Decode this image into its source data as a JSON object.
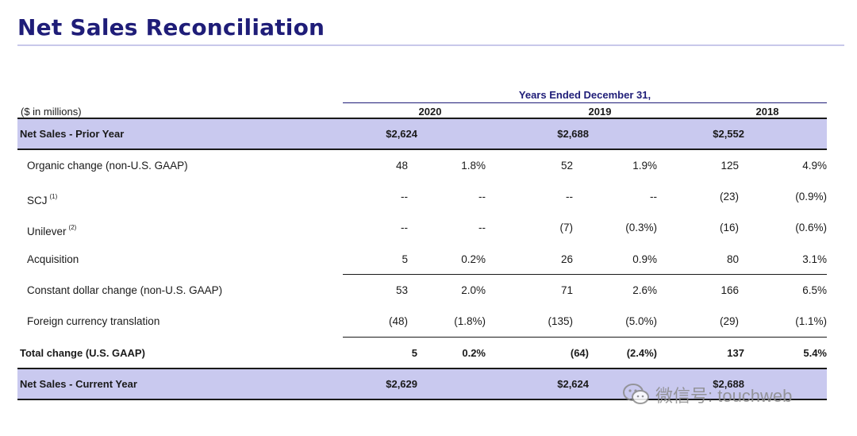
{
  "title": "Net Sales Reconciliation",
  "header": {
    "years_caption": "Years Ended December 31,",
    "units": "($ in millions)",
    "years": [
      "2020",
      "2019",
      "2018"
    ]
  },
  "rows": [
    {
      "label": "Net Sales - Prior Year",
      "values": [
        "$2,624",
        "",
        "$2,688",
        "",
        "$2,552",
        ""
      ]
    },
    {
      "label": "Organic change (non-U.S. GAAP)",
      "values": [
        "48",
        "1.8%",
        "52",
        "1.9%",
        "125",
        "4.9%"
      ]
    },
    {
      "label": "SCJ",
      "note": "(1)",
      "values": [
        "--",
        "--",
        "--",
        "--",
        "(23)",
        "(0.9%)"
      ]
    },
    {
      "label": "Unilever",
      "note": "(2)",
      "values": [
        "--",
        "--",
        "(7)",
        "(0.3%)",
        "(16)",
        "(0.6%)"
      ]
    },
    {
      "label": "Acquisition",
      "values": [
        "5",
        "0.2%",
        "26",
        "0.9%",
        "80",
        "3.1%"
      ]
    },
    {
      "label": "Constant dollar change (non-U.S. GAAP)",
      "values": [
        "53",
        "2.0%",
        "71",
        "2.6%",
        "166",
        "6.5%"
      ]
    },
    {
      "label": "Foreign currency translation",
      "values": [
        "(48)",
        "(1.8%)",
        "(135)",
        "(5.0%)",
        "(29)",
        "(1.1%)"
      ]
    },
    {
      "label": "Total change (U.S. GAAP)",
      "values": [
        "5",
        "0.2%",
        "(64)",
        "(2.4%)",
        "137",
        "5.4%"
      ]
    },
    {
      "label": "Net Sales - Current Year",
      "values": [
        "$2,629",
        "",
        "$2,624",
        "",
        "$2,688",
        ""
      ]
    }
  ],
  "watermark": {
    "text": "微信号: touchweb",
    "icon": "wechat-icon"
  },
  "colors": {
    "title": "#1f1d78",
    "band": "#c9c9ef",
    "rule": "#c8c8ea"
  }
}
